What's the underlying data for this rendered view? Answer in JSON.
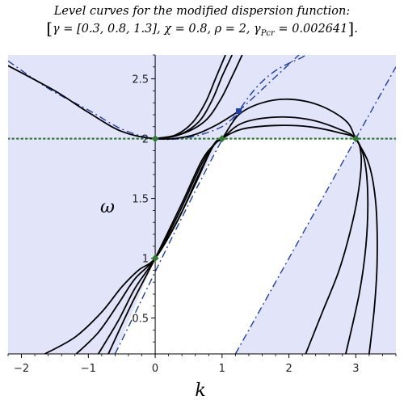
{
  "title": {
    "line1": "Level curves for the modified dispersion function:",
    "params": {
      "gamma_symbol": "γ",
      "gamma_value": "[0.3, 0.8, 1.3]",
      "chi_symbol": "χ",
      "chi_value": "0.8",
      "rho_symbol": "ρ",
      "rho_value": "2",
      "gamma_pcr_symbol": "γ",
      "gamma_pcr_sub": "Pcr",
      "gamma_pcr_value": "0.002641"
    }
  },
  "chart_data": {
    "type": "line",
    "xlabel": "k",
    "ylabel": "ω",
    "xlim": [
      -2.2,
      3.6
    ],
    "ylim": [
      0.2,
      2.7
    ],
    "x_ticks": [
      -2,
      -1,
      0,
      1,
      2,
      3
    ],
    "x_tick_labels": [
      "−2",
      "−1",
      "0",
      "1",
      "2",
      "3"
    ],
    "y_ticks": [
      0.5,
      1,
      1.5,
      2,
      2.5
    ],
    "y_tick_labels": [
      "0.5",
      "1",
      "1.5",
      "2",
      "2.5"
    ],
    "horizontal_reference": {
      "y": 2,
      "style": "dotted",
      "color": "#2e7d32"
    },
    "shaded_region_color": "#e2e4fa",
    "level_curve_color": "#000000",
    "asymptote_color": "#1f3fa0",
    "level_curves": [
      {
        "name": "",
        "points": [
          [
            -1.65,
            0.2
          ],
          [
            -1.2,
            0.34
          ],
          [
            -0.8,
            0.55
          ],
          [
            -0.5,
            0.76
          ],
          [
            -0.25,
            0.9
          ],
          [
            0,
            1
          ],
          [
            0.3,
            1.28
          ],
          [
            0.6,
            1.62
          ],
          [
            0.85,
            1.92
          ],
          [
            1,
            2
          ],
          [
            1.3,
            2.08
          ],
          [
            1.8,
            2.11
          ],
          [
            2.3,
            2.1
          ],
          [
            2.75,
            2.05
          ],
          [
            3,
            2
          ],
          [
            3.08,
            1.85
          ],
          [
            3.05,
            1.6
          ],
          [
            2.95,
            1.3
          ],
          [
            2.75,
            0.9
          ],
          [
            2.5,
            0.55
          ],
          [
            2.25,
            0.2
          ]
        ]
      },
      {
        "name": "",
        "points": [
          [
            -1.18,
            0.2
          ],
          [
            -0.85,
            0.38
          ],
          [
            -0.55,
            0.62
          ],
          [
            -0.3,
            0.83
          ],
          [
            0,
            1
          ],
          [
            0.35,
            1.33
          ],
          [
            0.65,
            1.7
          ],
          [
            0.88,
            1.95
          ],
          [
            1,
            2
          ],
          [
            1.3,
            2.13
          ],
          [
            1.8,
            2.18
          ],
          [
            2.3,
            2.16
          ],
          [
            2.75,
            2.08
          ],
          [
            3,
            2
          ],
          [
            3.13,
            1.82
          ],
          [
            3.18,
            1.5
          ],
          [
            3.15,
            1.1
          ],
          [
            3.05,
            0.7
          ],
          [
            2.85,
            0.2
          ]
        ]
      },
      {
        "name": "",
        "points": [
          [
            -0.85,
            0.2
          ],
          [
            -0.55,
            0.48
          ],
          [
            -0.3,
            0.75
          ],
          [
            0,
            1
          ],
          [
            0.35,
            1.37
          ],
          [
            0.68,
            1.77
          ],
          [
            0.9,
            1.97
          ],
          [
            1,
            2
          ],
          [
            1.25,
            2.2
          ],
          [
            1.6,
            2.3
          ],
          [
            2,
            2.33
          ],
          [
            2.45,
            2.28
          ],
          [
            2.85,
            2.15
          ],
          [
            3,
            2
          ],
          [
            3.2,
            1.78
          ],
          [
            3.3,
            1.45
          ],
          [
            3.32,
            1.0
          ],
          [
            3.28,
            0.6
          ],
          [
            3.2,
            0.2
          ]
        ]
      },
      {
        "name": "",
        "points": [
          [
            -0.7,
            0.2
          ],
          [
            -0.35,
            0.62
          ],
          [
            0,
            1
          ],
          [
            0.4,
            1.46
          ],
          [
            0.7,
            1.82
          ],
          [
            0.9,
            1.96
          ],
          [
            1,
            2
          ]
        ]
      },
      {
        "name": "",
        "points": [
          [
            0,
            2
          ],
          [
            0.3,
            2.03
          ],
          [
            0.55,
            2.13
          ],
          [
            0.75,
            2.3
          ],
          [
            0.9,
            2.5
          ],
          [
            1.05,
            2.7
          ]
        ]
      },
      {
        "name": "",
        "points": [
          [
            0,
            2
          ],
          [
            0.35,
            2.03
          ],
          [
            0.65,
            2.14
          ],
          [
            0.85,
            2.32
          ],
          [
            1.0,
            2.52
          ],
          [
            1.15,
            2.7
          ]
        ]
      },
      {
        "name": "",
        "points": [
          [
            0,
            2
          ],
          [
            0.4,
            2.04
          ],
          [
            0.75,
            2.15
          ],
          [
            0.98,
            2.33
          ],
          [
            1.15,
            2.52
          ],
          [
            1.3,
            2.7
          ]
        ]
      },
      {
        "name": "",
        "points": [
          [
            -2.2,
            2.61
          ],
          [
            -1.5,
            2.4
          ],
          [
            -1.0,
            2.22
          ],
          [
            -0.5,
            2.06
          ],
          [
            0,
            2
          ],
          [
            0.5,
            2.02
          ],
          [
            0.9,
            2.11
          ],
          [
            1.25,
            2.23
          ]
        ]
      }
    ],
    "asymptotes": [
      {
        "name": "",
        "points": [
          [
            -0.6,
            0.2
          ],
          [
            1.25,
            2.23
          ],
          [
            2.25,
            2.7
          ]
        ]
      },
      {
        "name": "",
        "points": [
          [
            1.25,
            2.23
          ],
          [
            2.15,
            2.7
          ]
        ]
      },
      {
        "name": "",
        "points": [
          [
            1.2,
            0.2
          ],
          [
            3.6,
            2.6
          ]
        ]
      },
      {
        "name": "",
        "points": [
          [
            -2.2,
            2.65
          ],
          [
            -1.6,
            2.42
          ],
          [
            -1.0,
            2.24
          ],
          [
            -0.5,
            2.08
          ],
          [
            0,
            2
          ],
          [
            0.5,
            2.01
          ],
          [
            1.0,
            2.1
          ],
          [
            1.25,
            2.23
          ]
        ]
      }
    ],
    "markers": [
      {
        "x": 0,
        "y": 1,
        "color": "#2e7d32",
        "shape": "diamond"
      },
      {
        "x": 0,
        "y": 2,
        "color": "#2e7d32",
        "shape": "diamond"
      },
      {
        "x": 1,
        "y": 2,
        "color": "#2e7d32",
        "shape": "diamond"
      },
      {
        "x": 3,
        "y": 2,
        "color": "#2e7d32",
        "shape": "diamond"
      },
      {
        "x": 1.25,
        "y": 2.23,
        "color": "#1f3fa0",
        "shape": "square"
      }
    ]
  }
}
